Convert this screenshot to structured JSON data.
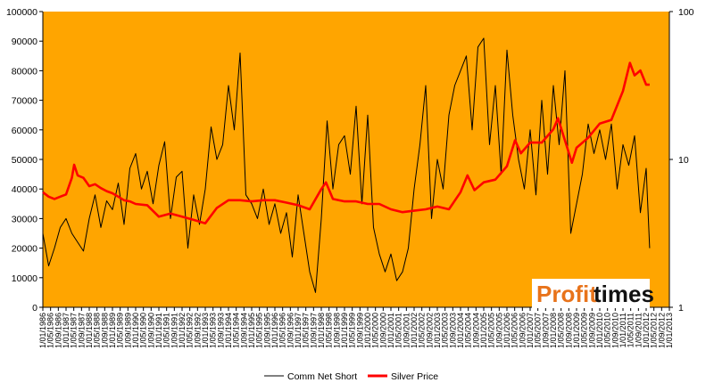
{
  "chart_data": {
    "type": "line",
    "title": "",
    "plot_background": "#FFA500",
    "y_left": {
      "min": 0,
      "max": 100000,
      "step": 10000,
      "ticks": [
        "0",
        "10000",
        "20000",
        "30000",
        "40000",
        "50000",
        "60000",
        "70000",
        "80000",
        "90000",
        "100000"
      ]
    },
    "y_right": {
      "scale": "log",
      "min": 1,
      "max": 100,
      "ticks": [
        "1",
        "10",
        "100"
      ]
    },
    "x_ticks": [
      "1/01/1986",
      "1/05/1986",
      "1/09/1986",
      "1/01/1987",
      "1/05/1987",
      "1/09/1987",
      "1/01/1988",
      "1/05/1988",
      "1/09/1988",
      "1/01/1989",
      "1/05/1989",
      "1/09/1989",
      "1/01/1990",
      "1/05/1990",
      "1/09/1990",
      "1/01/1991",
      "1/05/1991",
      "1/09/1991",
      "1/01/1992",
      "1/05/1992",
      "1/09/1992",
      "1/01/1993",
      "1/05/1993",
      "1/09/1993",
      "1/01/1994",
      "1/05/1994",
      "1/09/1994",
      "1/01/1995",
      "1/05/1995",
      "1/09/1995",
      "1/01/1996",
      "1/05/1996",
      "1/09/1996",
      "1/01/1997",
      "1/05/1997",
      "1/09/1997",
      "1/01/1998",
      "1/05/1998",
      "1/09/1998",
      "1/01/1999",
      "1/05/1999",
      "1/09/1999",
      "1/01/2000",
      "1/05/2000",
      "1/09/2000",
      "1/01/2001",
      "1/05/2001",
      "1/09/2001",
      "1/01/2002",
      "1/05/2002",
      "1/09/2002",
      "1/01/2003",
      "1/05/2003",
      "1/09/2003",
      "1/01/2004",
      "1/05/2004",
      "1/09/2004",
      "1/01/2005",
      "1/05/2005",
      "1/09/2005",
      "1/01/2006",
      "1/05/2006",
      "1/09/2006",
      "1/01/2007",
      "1/05/2007",
      "1/09/2007",
      "1/01/2008",
      "1/05/2008",
      "1/09/2008",
      "1/01/2009",
      "1/05/2009",
      "1/09/2009",
      "1/01/2010",
      "1/05/2010",
      "1/09/2010",
      "1/01/2011",
      "1/05/2011",
      "1/09/2011",
      "1/01/2012",
      "1/05/2012",
      "1/09/2012",
      "1/01/2013"
    ],
    "x_range": [
      1986.0,
      2013.0
    ],
    "series": [
      {
        "name": "Comm Net Short",
        "axis": "left",
        "color": "#000000",
        "x": [
          1986.0,
          1986.25,
          1986.5,
          1986.75,
          1987.0,
          1987.25,
          1987.5,
          1987.75,
          1988.0,
          1988.25,
          1988.5,
          1988.75,
          1989.0,
          1989.25,
          1989.5,
          1989.75,
          1990.0,
          1990.25,
          1990.5,
          1990.75,
          1991.0,
          1991.25,
          1991.5,
          1991.75,
          1992.0,
          1992.25,
          1992.5,
          1992.75,
          1993.0,
          1993.25,
          1993.5,
          1993.75,
          1994.0,
          1994.25,
          1994.5,
          1994.75,
          1995.0,
          1995.25,
          1995.5,
          1995.75,
          1996.0,
          1996.25,
          1996.5,
          1996.75,
          1997.0,
          1997.25,
          1997.5,
          1997.75,
          1998.0,
          1998.25,
          1998.5,
          1998.75,
          1999.0,
          1999.25,
          1999.5,
          1999.75,
          2000.0,
          2000.25,
          2000.5,
          2000.75,
          2001.0,
          2001.25,
          2001.5,
          2001.75,
          2002.0,
          2002.25,
          2002.5,
          2002.75,
          2003.0,
          2003.25,
          2003.5,
          2003.75,
          2004.0,
          2004.25,
          2004.5,
          2004.75,
          2005.0,
          2005.25,
          2005.5,
          2005.75,
          2006.0,
          2006.25,
          2006.5,
          2006.75,
          2007.0,
          2007.25,
          2007.5,
          2007.75,
          2008.0,
          2008.25,
          2008.5,
          2008.75,
          2009.0,
          2009.25,
          2009.5,
          2009.75,
          2010.0,
          2010.25,
          2010.5,
          2010.75,
          2011.0,
          2011.25,
          2011.5,
          2011.75,
          2012.0,
          2012.15
        ],
        "values": [
          25000,
          14000,
          20000,
          27000,
          30000,
          25000,
          22000,
          19000,
          30000,
          38000,
          27000,
          36000,
          33000,
          42000,
          28000,
          47000,
          52000,
          40000,
          46000,
          35000,
          48000,
          56000,
          30000,
          44000,
          46000,
          20000,
          38000,
          28000,
          40000,
          61000,
          50000,
          55000,
          75000,
          60000,
          86000,
          38000,
          35000,
          30000,
          40000,
          28000,
          35000,
          25000,
          32000,
          17000,
          38000,
          25000,
          12000,
          5000,
          30000,
          63000,
          40000,
          55000,
          58000,
          45000,
          68000,
          35000,
          65000,
          27000,
          18000,
          12000,
          18000,
          9000,
          12000,
          20000,
          40000,
          55000,
          75000,
          30000,
          50000,
          40000,
          65000,
          75000,
          80000,
          85000,
          60000,
          88000,
          91000,
          55000,
          75000,
          45000,
          87000,
          65000,
          50000,
          40000,
          60000,
          38000,
          70000,
          45000,
          75000,
          55000,
          80000,
          25000,
          35000,
          45000,
          62000,
          52000,
          60000,
          50000,
          62000,
          40000,
          55000,
          48000,
          58000,
          32000,
          47000,
          20000
        ]
      },
      {
        "name": "Silver Price",
        "axis": "right",
        "color": "#FF0000",
        "x": [
          1986.0,
          1986.25,
          1986.5,
          1986.75,
          1987.0,
          1987.25,
          1987.35,
          1987.5,
          1987.75,
          1988.0,
          1988.25,
          1988.5,
          1988.75,
          1989.0,
          1989.25,
          1989.5,
          1989.75,
          1990.0,
          1990.5,
          1991.0,
          1991.5,
          1992.0,
          1992.5,
          1993.0,
          1993.5,
          1994.0,
          1994.5,
          1995.0,
          1995.5,
          1996.0,
          1996.5,
          1997.0,
          1997.5,
          1998.0,
          1998.2,
          1998.5,
          1999.0,
          1999.5,
          2000.0,
          2000.5,
          2001.0,
          2001.5,
          2002.0,
          2002.5,
          2003.0,
          2003.5,
          2004.0,
          2004.3,
          2004.6,
          2005.0,
          2005.5,
          2006.0,
          2006.35,
          2006.6,
          2007.0,
          2007.5,
          2008.0,
          2008.2,
          2008.8,
          2009.0,
          2009.5,
          2010.0,
          2010.5,
          2011.0,
          2011.3,
          2011.5,
          2011.75,
          2012.0,
          2012.15
        ],
        "values": [
          6.0,
          5.6,
          5.4,
          5.6,
          5.8,
          7.5,
          9.2,
          7.8,
          7.5,
          6.6,
          6.8,
          6.4,
          6.1,
          5.9,
          5.6,
          5.3,
          5.2,
          5.0,
          4.9,
          4.1,
          4.3,
          4.1,
          3.9,
          3.7,
          4.7,
          5.3,
          5.3,
          5.2,
          5.3,
          5.3,
          5.1,
          4.9,
          4.6,
          6.3,
          7.0,
          5.4,
          5.2,
          5.2,
          5.0,
          5.0,
          4.6,
          4.4,
          4.5,
          4.6,
          4.8,
          4.6,
          6.0,
          7.8,
          6.2,
          7.0,
          7.3,
          9.0,
          13.5,
          11.0,
          13.0,
          13.0,
          16.0,
          19.0,
          9.5,
          12.0,
          14.0,
          17.5,
          18.5,
          29.0,
          45.0,
          37.0,
          40.0,
          32.0,
          32.0
        ]
      }
    ],
    "legend": {
      "position": "bottom-center",
      "entries": [
        "Comm Net Short",
        "Silver Price"
      ]
    },
    "grid": false
  },
  "watermark": {
    "brand": "Profit times",
    "part1": "Profit",
    "part2": "times"
  }
}
